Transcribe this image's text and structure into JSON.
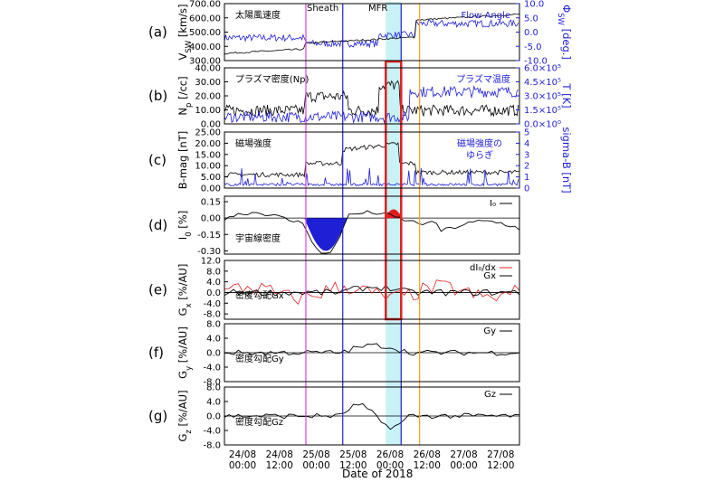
{
  "chart_data": {
    "type": "line",
    "xlabel": "Date of 2018",
    "x_ticks": [
      {
        "line1": "24/08",
        "line2": "00:00",
        "t": 0
      },
      {
        "line1": "24/08",
        "line2": "12:00",
        "t": 12
      },
      {
        "line1": "25/08",
        "line2": "00:00",
        "t": 24
      },
      {
        "line1": "25/08",
        "line2": "12:00",
        "t": 36
      },
      {
        "line1": "26/08",
        "line2": "00:00",
        "t": 48
      },
      {
        "line1": "26/08",
        "line2": "12:00",
        "t": 60
      },
      {
        "line1": "27/08",
        "line2": "00:00",
        "t": 72
      },
      {
        "line1": "27/08",
        "line2": "12:00",
        "t": 84
      }
    ],
    "x_range_hours": [
      0,
      96
    ],
    "region_labels": [
      {
        "text": "Sheath",
        "t": 31
      },
      {
        "text": "MFR",
        "t": 52
      }
    ],
    "mfr_band_hours": [
      52.5,
      57.5
    ],
    "vlines": [
      {
        "t": 26.5,
        "color": "#e040e0"
      },
      {
        "t": 38.5,
        "color": "#2020d0"
      },
      {
        "t": 57.5,
        "color": "#2020d0"
      },
      {
        "t": 63.5,
        "color": "#f0a020"
      }
    ],
    "highlight_box_hours": [
      52.5,
      57.5
    ],
    "panels": [
      {
        "letter": "(a)",
        "ylabel": "V_SW [km/s]",
        "ylabel_main": "V",
        "ylabel_sub": "SW",
        "ylabel_rest": " [km/s]",
        "yticks": [
          "700.00",
          "600.00",
          "500.00",
          "400.00",
          "300.00"
        ],
        "ylim": [
          300,
          700
        ],
        "y2label": "Φ_SW [deg.]",
        "y2label_main": "Φ",
        "y2label_sub": "SW",
        "y2label_rest": " [deg.]",
        "y2ticks": [
          "10.0",
          "5.0",
          "0.0",
          "-5.0",
          "-10.0"
        ],
        "y2lim": [
          -10,
          10
        ],
        "annotation_left": "太陽風速度",
        "annotation_right": "Flow Angle"
      },
      {
        "letter": "(b)",
        "ylabel": "N_p [/cc]",
        "ylabel_main": "N",
        "ylabel_sub": "p",
        "ylabel_rest": " [/cc]",
        "yticks": [
          "40.00",
          "30.00",
          "20.00",
          "10.00",
          "0.00"
        ],
        "ylim": [
          0,
          40
        ],
        "y2label": "T [K]",
        "y2label_main": "T",
        "y2label_sub": "",
        "y2label_rest": " [K]",
        "y2ticks": [
          "6.0×10⁵",
          "4.5×10⁵",
          "3.0×10⁵",
          "1.5×10⁵",
          "0.0×10⁰"
        ],
        "y2lim": [
          0,
          600000
        ],
        "annotation_left": "プラズマ密度(Np)",
        "annotation_right": "プラズマ温度"
      },
      {
        "letter": "(c)",
        "ylabel": "B-mag [nT]",
        "ylabel_main": "B-mag",
        "ylabel_sub": "",
        "ylabel_rest": " [nT]",
        "yticks": [
          "25.00",
          "20.00",
          "15.00",
          "10.00",
          "5.00",
          "0.00"
        ],
        "ylim": [
          0,
          25
        ],
        "y2label": "sigma-B [nT]",
        "y2label_main": "sigma-B",
        "y2label_sub": "",
        "y2label_rest": " [nT]",
        "y2ticks": [
          "5",
          "4",
          "3",
          "2",
          "1",
          "0"
        ],
        "y2lim": [
          0,
          5
        ],
        "annotation_left": "磁場強度",
        "annotation_right_line1": "磁場強度の",
        "annotation_right_line2": "ゆらぎ"
      },
      {
        "letter": "(d)",
        "ylabel": "I_0 [%]",
        "ylabel_main": "I",
        "ylabel_sub": "0",
        "ylabel_rest": " [%]",
        "yticks": [
          "0.15",
          "0.00",
          "-0.15",
          "-0.30"
        ],
        "ylim": [
          -0.33,
          0.2
        ],
        "annotation_left": "宇宙線密度",
        "legend": "I₀"
      },
      {
        "letter": "(e)",
        "ylabel": "G_x [%/AU]",
        "ylabel_main": "G",
        "ylabel_sub": "x",
        "ylabel_rest": " [%/AU]",
        "yticks": [
          "12.0",
          "8.0",
          "4.0",
          "0.0",
          "-4.0",
          "-8.0"
        ],
        "ylim": [
          -10,
          12
        ],
        "annotation_left": "密度勾配Gx",
        "legend": [
          "dI₀/dx",
          "Gx"
        ]
      },
      {
        "letter": "(f)",
        "ylabel": "G_y [%/AU]",
        "ylabel_main": "G",
        "ylabel_sub": "y",
        "ylabel_rest": " [%/AU]",
        "yticks": [
          "8.0",
          "4.0",
          "0.0",
          "-4.0",
          "-8.0"
        ],
        "ylim": [
          -8,
          8
        ],
        "annotation_left": "密度勾配Gy",
        "legend": "Gy"
      },
      {
        "letter": "(g)",
        "ylabel": "G_z [%/AU]",
        "ylabel_main": "G",
        "ylabel_sub": "z",
        "ylabel_rest": " [%/AU]",
        "yticks": [
          "8.0",
          "4.0",
          "0.0",
          "-4.0",
          "-8.0"
        ],
        "ylim": [
          -8,
          8
        ],
        "annotation_left": "密度勾配Gz",
        "legend": "Gz"
      }
    ],
    "colors": {
      "black_series": "#000000",
      "blue_series": "#1f1fd6",
      "red_series": "#e02020",
      "mfr_band": "#c8f2f6",
      "highlight_box": "#e02020"
    }
  }
}
